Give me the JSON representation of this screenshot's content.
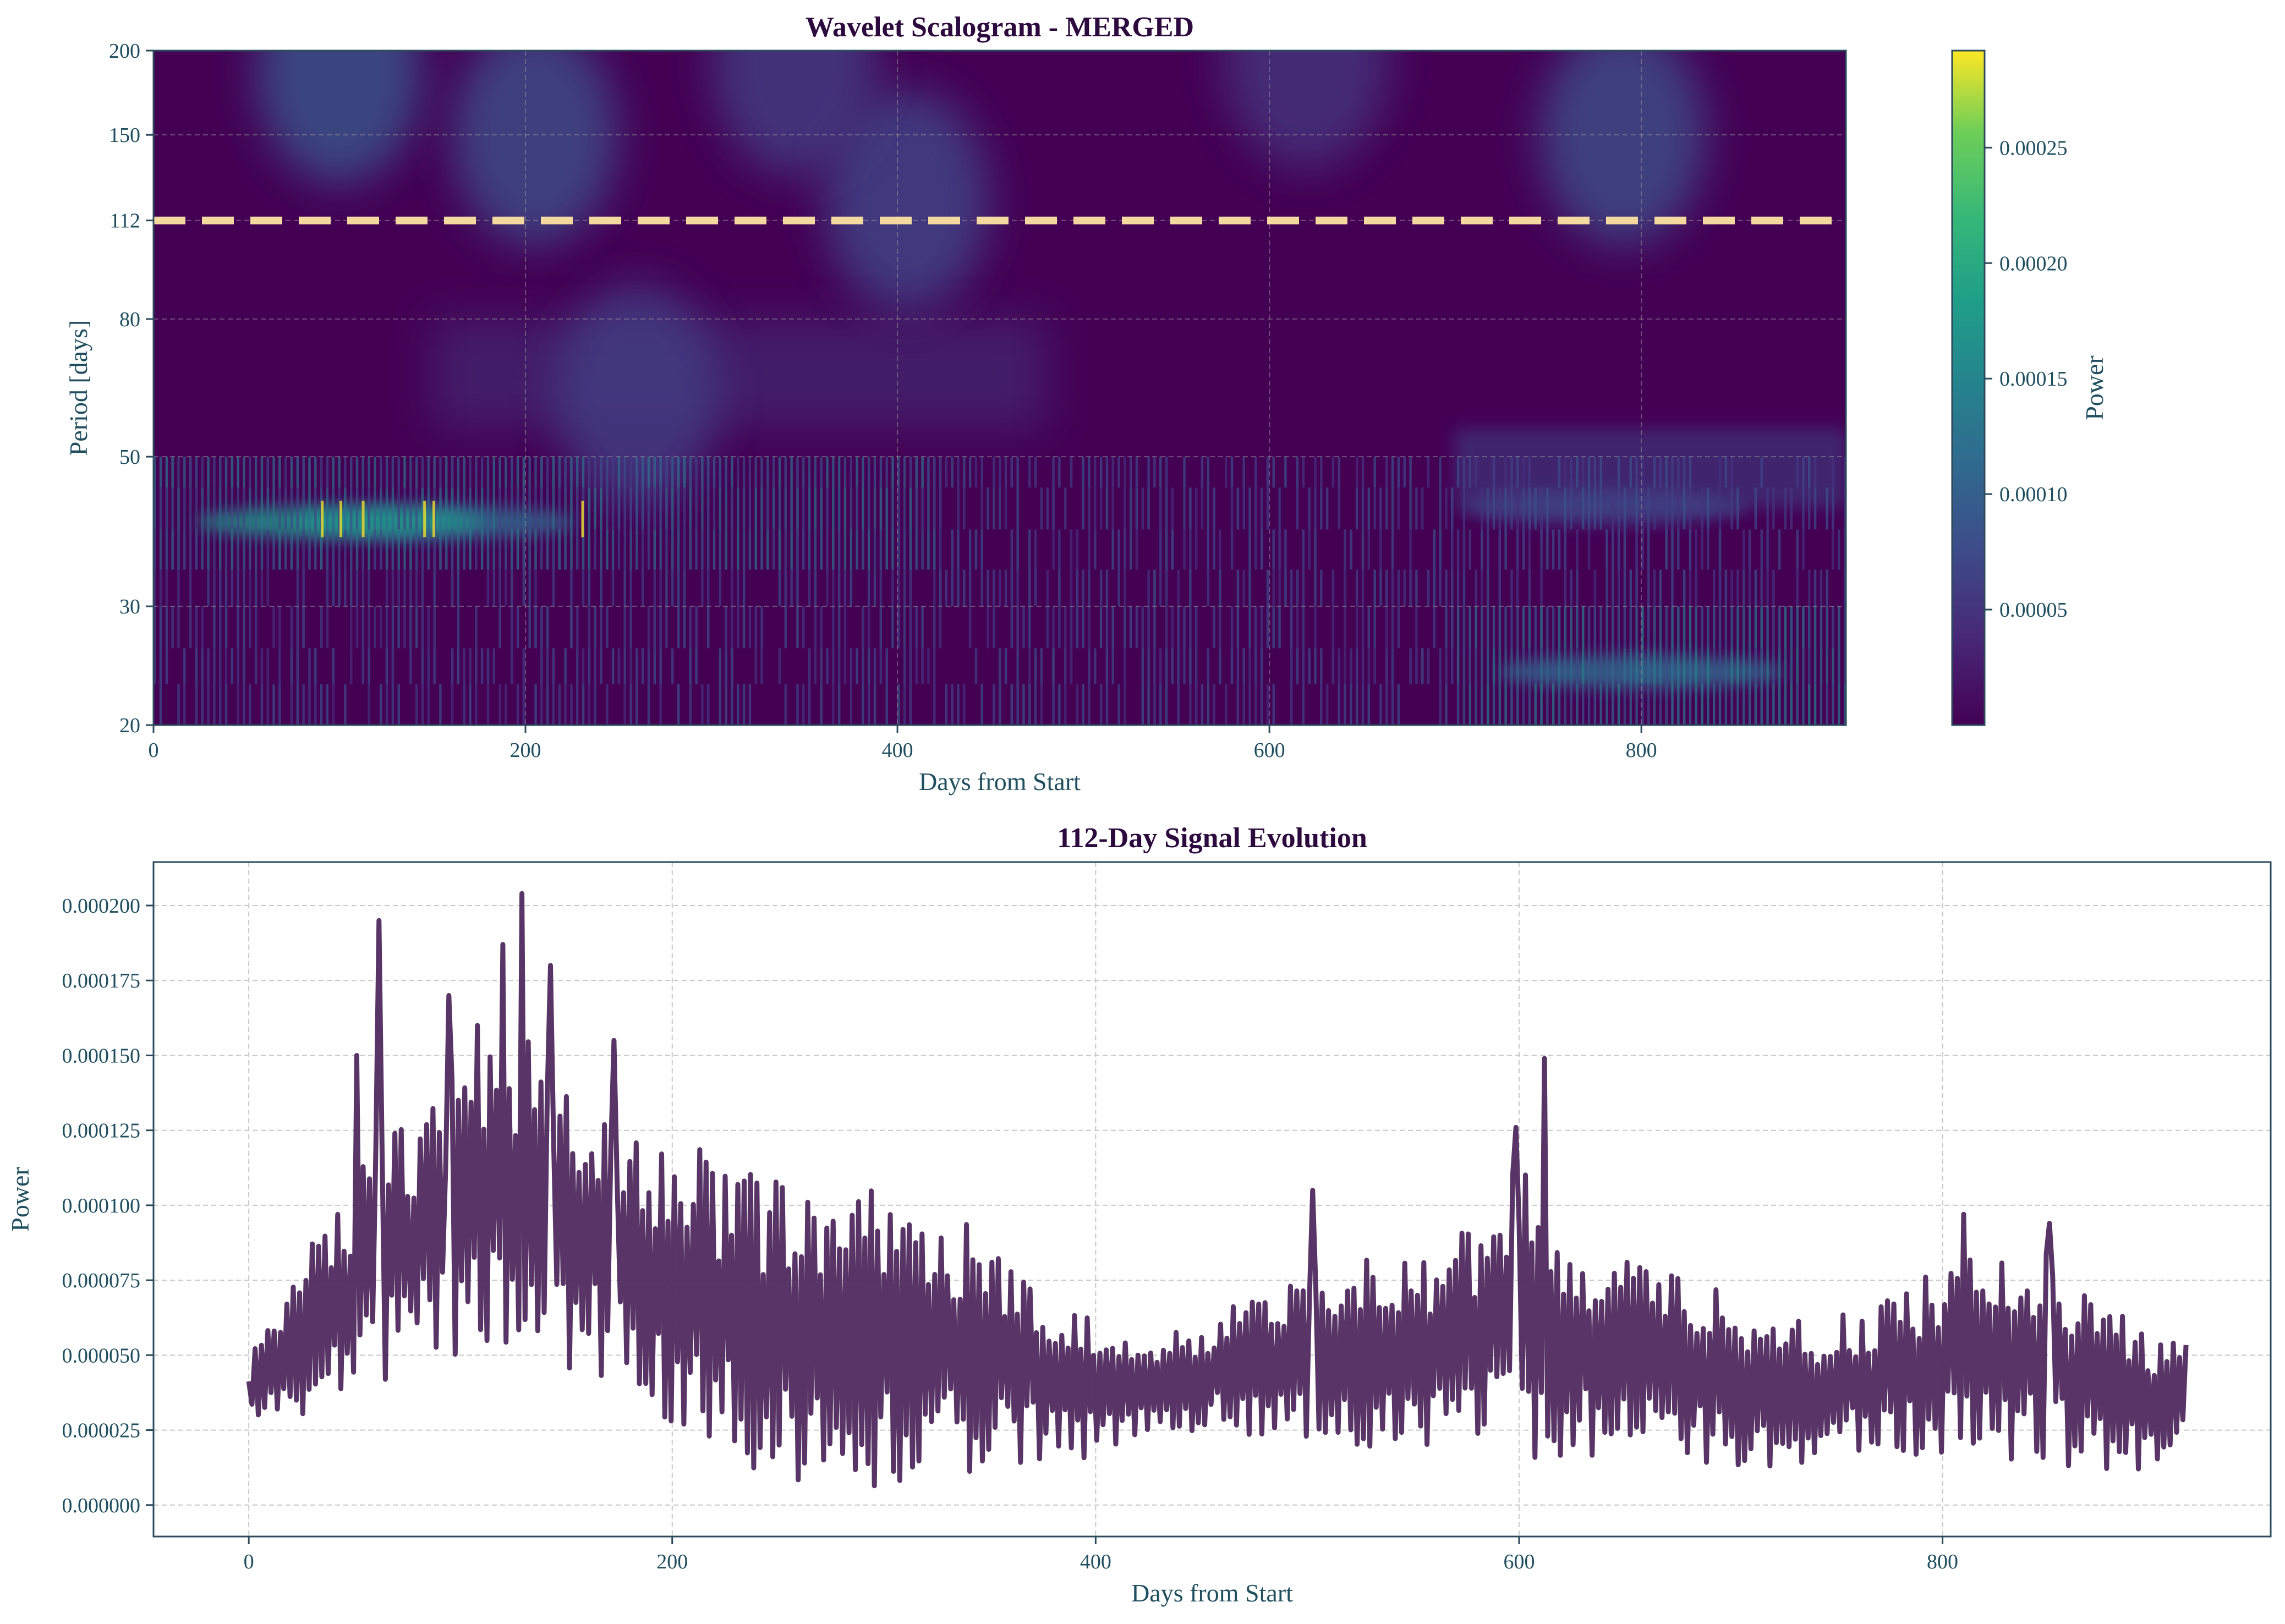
{
  "colors": {
    "axis_text": "#1f4e5f",
    "title_text": "#2d0a3e",
    "spine": "#2b4b5c",
    "grid": "#c8c8c8",
    "line": "#4f2a5e",
    "dash_line": "#f3d9a0",
    "viridis_low": "#440154",
    "viridis_high": "#fde725"
  },
  "chart_data": [
    {
      "type": "heatmap",
      "title": "Wavelet Scalogram - MERGED",
      "xlabel": "Days from Start",
      "ylabel": "Period [days]",
      "xlim": [
        0,
        910
      ],
      "ylim": [
        20,
        200
      ],
      "x_ticks": [
        0,
        200,
        400,
        600,
        800
      ],
      "y_ticks": [
        20,
        30,
        50,
        80,
        112,
        150,
        200
      ],
      "grid": true,
      "highlight_period": 112,
      "colorbar": {
        "label": "Power",
        "range": [
          0,
          0.000292
        ],
        "ticks": [
          "0.00005",
          "0.00010",
          "0.00015",
          "0.00020",
          "0.00025"
        ],
        "tick_values": [
          5e-05,
          0.0001,
          0.00015,
          0.0002,
          0.00025
        ]
      },
      "hotspots": [
        {
          "day": 100,
          "period": 185,
          "power": 9e-05
        },
        {
          "day": 205,
          "period": 150,
          "power": 8e-05
        },
        {
          "day": 405,
          "period": 120,
          "power": 7e-05
        },
        {
          "day": 345,
          "period": 190,
          "power": 6e-05
        },
        {
          "day": 790,
          "period": 150,
          "power": 8e-05
        },
        {
          "day": 620,
          "period": 195,
          "power": 5e-05
        },
        {
          "day": 260,
          "period": 62,
          "power": 6e-05
        },
        {
          "day": 150,
          "period": 40,
          "power": 0.00012
        },
        {
          "day": 100,
          "period": 40,
          "power": 0.00018
        },
        {
          "day": 800,
          "period": 24,
          "power": 0.00012
        },
        {
          "day": 780,
          "period": 42,
          "power": 7e-05
        }
      ]
    },
    {
      "type": "line",
      "title": "112-Day Signal Evolution",
      "xlabel": "Days from Start",
      "ylabel": "Power",
      "xlim": [
        -45,
        955
      ],
      "ylim": [
        -1.05e-05,
        0.0002145
      ],
      "x_ticks": [
        0,
        200,
        400,
        600,
        800
      ],
      "y_ticks": [
        "0.000000",
        "0.000025",
        "0.000050",
        "0.000075",
        "0.000100",
        "0.000125",
        "0.000150",
        "0.000175",
        "0.000200"
      ],
      "y_tick_values": [
        0,
        2.5e-05,
        5e-05,
        7.5e-05,
        0.0001,
        0.000125,
        0.00015,
        0.000175,
        0.0002
      ],
      "grid": true,
      "x_range": [
        0,
        915
      ],
      "envelope": {
        "days": [
          0,
          30,
          60,
          90,
          120,
          150,
          180,
          210,
          240,
          270,
          300,
          330,
          360,
          390,
          420,
          450,
          480,
          510,
          540,
          570,
          600,
          630,
          660,
          690,
          720,
          750,
          780,
          810,
          840,
          870,
          900,
          915
        ],
        "upper": [
          5e-05,
          9e-05,
          0.00012,
          0.00014,
          0.00016,
          0.00015,
          0.00013,
          0.00012,
          0.00011,
          0.000105,
          0.000105,
          0.0001,
          8e-05,
          6.5e-05,
          5.5e-05,
          6e-05,
          7.5e-05,
          8e-05,
          8.5e-05,
          9e-05,
          0.000115,
          8.5e-05,
          8e-05,
          7.5e-05,
          6e-05,
          6.5e-05,
          7e-05,
          9e-05,
          9e-05,
          7e-05,
          6e-05,
          5.5e-05
        ],
        "lower": [
          2.5e-05,
          3e-05,
          4e-05,
          5e-05,
          5e-05,
          4.5e-05,
          3.5e-05,
          2e-05,
          1e-05,
          5e-06,
          4e-06,
          8e-06,
          1.2e-05,
          1.5e-05,
          2e-05,
          2.5e-05,
          2.2e-05,
          2e-05,
          1.8e-05,
          1.5e-05,
          1.2e-05,
          1.5e-05,
          1.5e-05,
          1.2e-05,
          1.2e-05,
          1.5e-05,
          1.5e-05,
          1.5e-05,
          1.5e-05,
          1.2e-05,
          1e-05,
          1.5e-05
        ]
      },
      "peaks": [
        {
          "day": 62,
          "value": 0.000195
        },
        {
          "day": 129,
          "value": 0.000204
        },
        {
          "day": 120,
          "value": 0.000187
        },
        {
          "day": 142,
          "value": 0.00018
        },
        {
          "day": 51,
          "value": 0.00015
        },
        {
          "day": 95,
          "value": 0.00017
        },
        {
          "day": 108,
          "value": 0.00016
        },
        {
          "day": 172,
          "value": 0.000155
        },
        {
          "day": 599,
          "value": 0.000126
        },
        {
          "day": 612,
          "value": 0.000149
        },
        {
          "day": 503,
          "value": 0.000105
        },
        {
          "day": 810,
          "value": 9.7e-05
        },
        {
          "day": 850,
          "value": 9.4e-05
        }
      ]
    }
  ]
}
